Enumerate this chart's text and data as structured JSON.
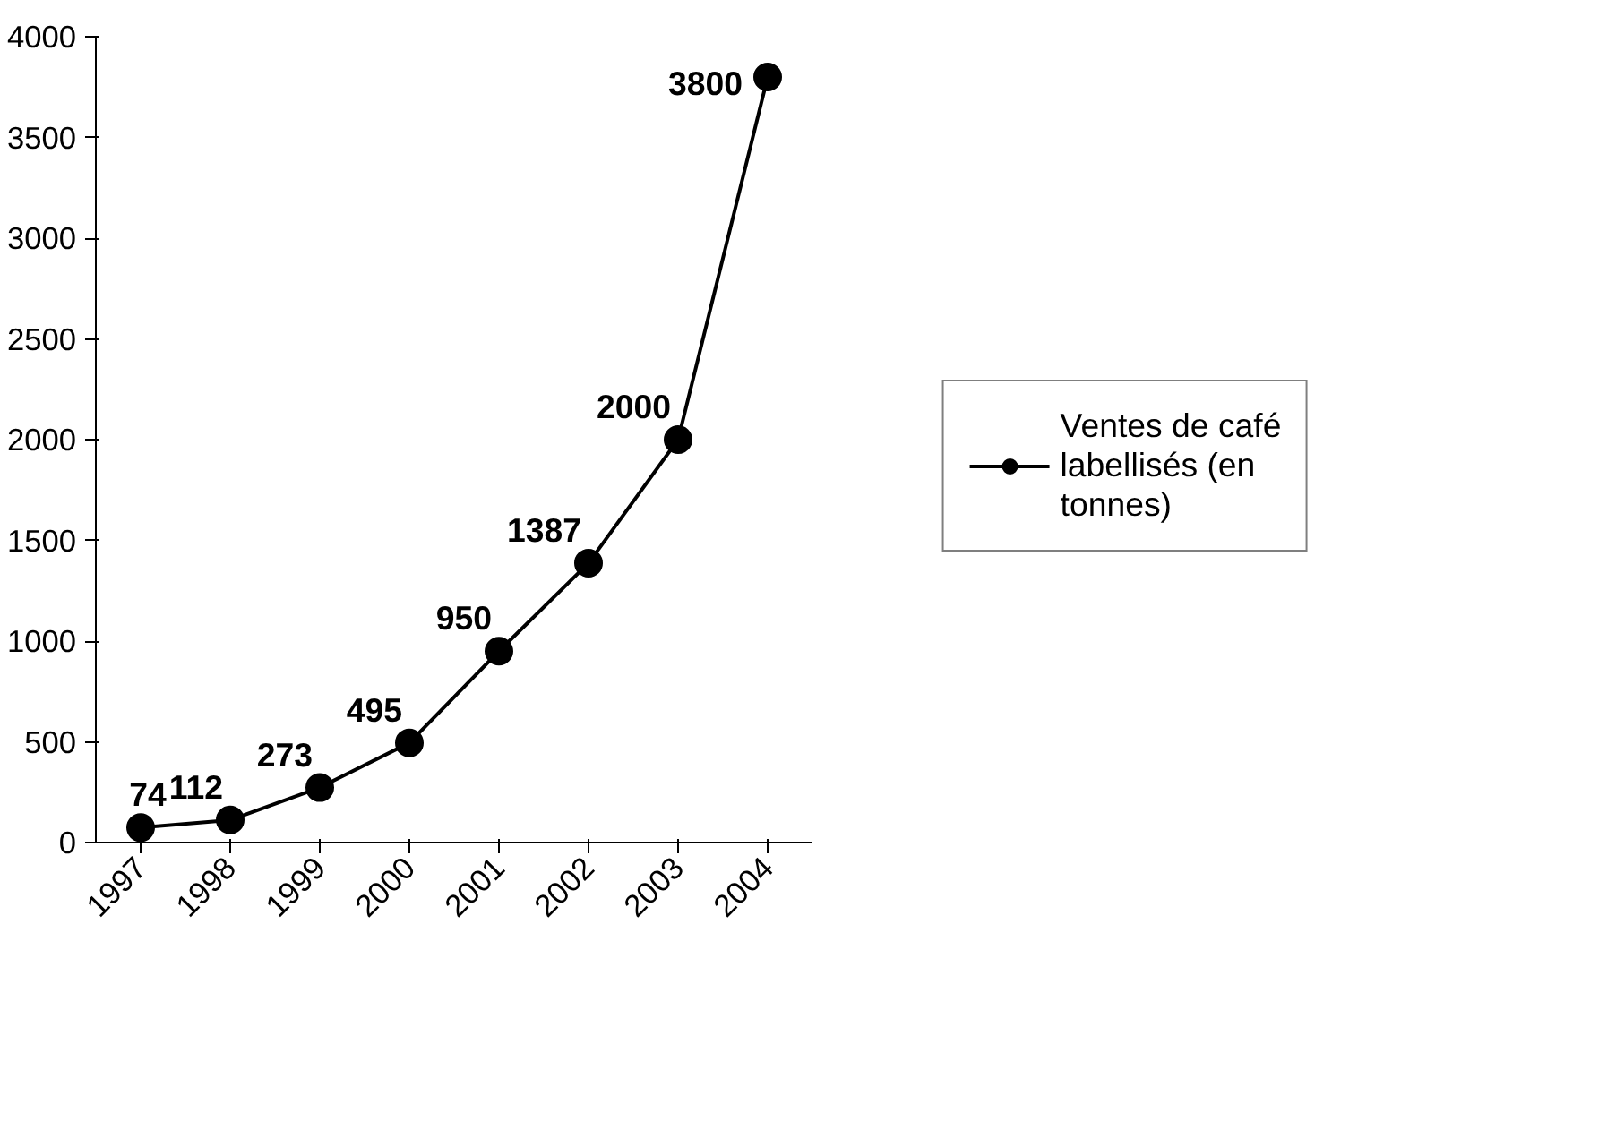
{
  "chart_data": {
    "type": "line",
    "categories": [
      "1997",
      "1998",
      "1999",
      "2000",
      "2001",
      "2002",
      "2003",
      "2004"
    ],
    "series": [
      {
        "name": "Ventes de café labellisés (en tonnes)",
        "color": "#000000",
        "values": [
          74,
          112,
          273,
          495,
          950,
          1387,
          2000,
          3800
        ]
      }
    ],
    "ylim": [
      0,
      4000
    ],
    "yticks": [
      0,
      500,
      1000,
      1500,
      2000,
      2500,
      3000,
      3500,
      4000
    ],
    "data_labels": true,
    "marker": "circle",
    "line_style": "solid",
    "grid": false,
    "legend": "right"
  }
}
